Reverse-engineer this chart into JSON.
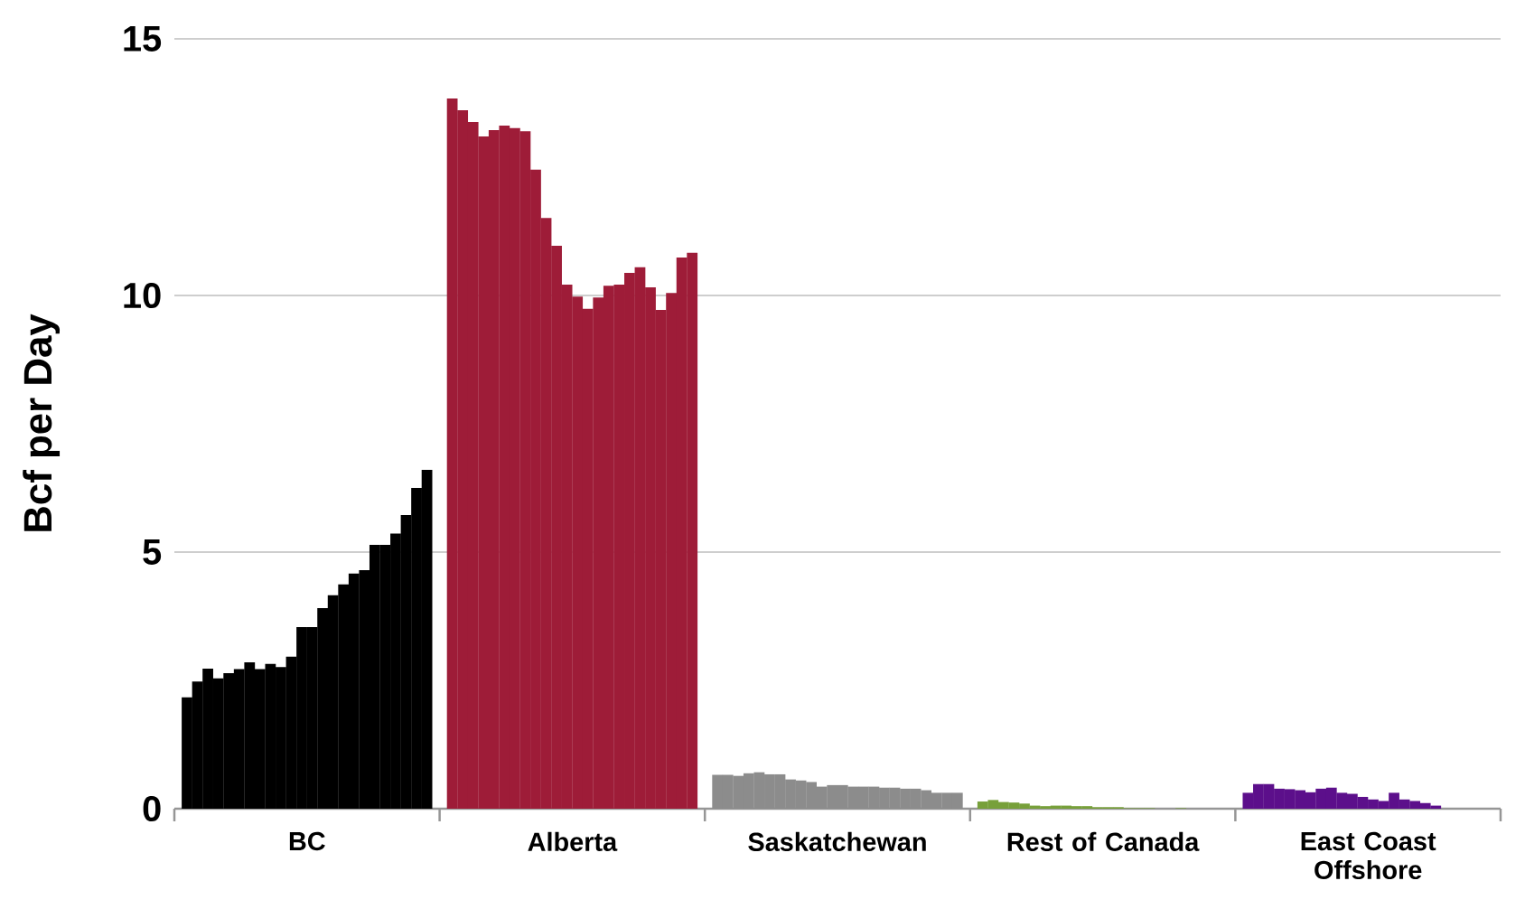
{
  "chart_data": {
    "type": "bar",
    "ylabel": "Bcf per Day",
    "categories": [
      "BC",
      "Alberta",
      "Saskatchewan",
      "Rest of Canada",
      "East Coast Offshore"
    ],
    "ylim": [
      0,
      15
    ],
    "yticks": [
      0,
      5,
      10,
      15
    ],
    "grid": "y",
    "series": [
      {
        "colors": [
          "#000000",
          "#9e1c38",
          "#8c8c8c",
          "#77a03a",
          "#5c0f8b"
        ],
        "values": [
          2.17,
          13.84,
          0.66,
          0.14,
          0.31
        ]
      },
      {
        "colors": [
          "#000000",
          "#9e1c38",
          "#8c8c8c",
          "#77a03a",
          "#5c0f8b"
        ],
        "values": [
          2.48,
          13.61,
          0.66,
          0.17,
          0.48
        ]
      },
      {
        "colors": [
          "#000000",
          "#9e1c38",
          "#8c8c8c",
          "#77a03a",
          "#5c0f8b"
        ],
        "values": [
          2.73,
          13.38,
          0.64,
          0.13,
          0.48
        ]
      },
      {
        "colors": [
          "#000000",
          "#9e1c38",
          "#8c8c8c",
          "#77a03a",
          "#5c0f8b"
        ],
        "values": [
          2.54,
          13.1,
          0.69,
          0.12,
          0.39
        ]
      },
      {
        "colors": [
          "#000000",
          "#9e1c38",
          "#8c8c8c",
          "#77a03a",
          "#5c0f8b"
        ],
        "values": [
          2.64,
          13.22,
          0.71,
          0.1,
          0.38
        ]
      },
      {
        "colors": [
          "#000000",
          "#9e1c38",
          "#8c8c8c",
          "#77a03a",
          "#5c0f8b"
        ],
        "values": [
          2.72,
          13.31,
          0.67,
          0.06,
          0.36
        ]
      },
      {
        "colors": [
          "#000000",
          "#9e1c38",
          "#8c8c8c",
          "#77a03a",
          "#5c0f8b"
        ],
        "values": [
          2.85,
          13.26,
          0.67,
          0.05,
          0.32
        ]
      },
      {
        "colors": [
          "#000000",
          "#9e1c38",
          "#8c8c8c",
          "#77a03a",
          "#5c0f8b"
        ],
        "values": [
          2.72,
          13.2,
          0.57,
          0.06,
          0.39
        ]
      },
      {
        "colors": [
          "#000000",
          "#9e1c38",
          "#8c8c8c",
          "#77a03a",
          "#5c0f8b"
        ],
        "values": [
          2.82,
          12.45,
          0.55,
          0.06,
          0.41
        ]
      },
      {
        "colors": [
          "#000000",
          "#9e1c38",
          "#8c8c8c",
          "#77a03a",
          "#5c0f8b"
        ],
        "values": [
          2.76,
          11.51,
          0.52,
          0.05,
          0.31
        ]
      },
      {
        "colors": [
          "#000000",
          "#9e1c38",
          "#8c8c8c",
          "#77a03a",
          "#5c0f8b"
        ],
        "values": [
          2.96,
          10.97,
          0.43,
          0.05,
          0.29
        ]
      },
      {
        "colors": [
          "#000000",
          "#9e1c38",
          "#8c8c8c",
          "#77a03a",
          "#5c0f8b"
        ],
        "values": [
          3.54,
          10.21,
          0.46,
          0.03,
          0.23
        ]
      },
      {
        "colors": [
          "#000000",
          "#9e1c38",
          "#8c8c8c",
          "#77a03a",
          "#5c0f8b"
        ],
        "values": [
          3.54,
          9.98,
          0.46,
          0.03,
          0.18
        ]
      },
      {
        "colors": [
          "#000000",
          "#9e1c38",
          "#8c8c8c",
          "#77a03a",
          "#5c0f8b"
        ],
        "values": [
          3.91,
          9.74,
          0.43,
          0.03,
          0.15
        ]
      },
      {
        "colors": [
          "#000000",
          "#9e1c38",
          "#8c8c8c",
          "#77a03a",
          "#5c0f8b"
        ],
        "values": [
          4.16,
          9.96,
          0.43,
          0.01,
          0.31
        ]
      },
      {
        "colors": [
          "#000000",
          "#9e1c38",
          "#8c8c8c",
          "#77a03a",
          "#5c0f8b"
        ],
        "values": [
          4.37,
          10.19,
          0.43,
          0.01,
          0.18
        ]
      },
      {
        "colors": [
          "#000000",
          "#9e1c38",
          "#8c8c8c",
          "#77a03a",
          "#5c0f8b"
        ],
        "values": [
          4.58,
          10.21,
          0.41,
          0.01,
          0.15
        ]
      },
      {
        "colors": [
          "#000000",
          "#9e1c38",
          "#8c8c8c",
          "#77a03a",
          "#5c0f8b"
        ],
        "values": [
          4.65,
          10.44,
          0.41,
          0,
          0.11
        ]
      },
      {
        "colors": [
          "#000000",
          "#9e1c38",
          "#8c8c8c",
          "#77a03a",
          "#5c0f8b"
        ],
        "values": [
          5.14,
          10.55,
          0.39,
          0,
          0.06
        ]
      },
      {
        "colors": [
          "#000000",
          "#9e1c38",
          "#8c8c8c",
          "#77a03a",
          "#5c0f8b"
        ],
        "values": [
          5.14,
          10.16,
          0.39,
          0.01,
          0
        ]
      },
      {
        "colors": [
          "#000000",
          "#9e1c38",
          "#8c8c8c",
          "#77a03a",
          "#5c0f8b"
        ],
        "values": [
          5.36,
          9.72,
          0.36,
          0,
          0
        ]
      },
      {
        "colors": [
          "#000000",
          "#9e1c38",
          "#8c8c8c",
          "#77a03a",
          "#5c0f8b"
        ],
        "values": [
          5.72,
          10.05,
          0.31,
          0,
          0
        ]
      },
      {
        "colors": [
          "#000000",
          "#9e1c38",
          "#8c8c8c",
          "#77a03a",
          "#5c0f8b"
        ],
        "values": [
          6.25,
          10.74,
          0.31,
          0,
          0
        ]
      },
      {
        "colors": [
          "#000000",
          "#9e1c38",
          "#8c8c8c",
          "#77a03a",
          "#5c0f8b"
        ],
        "values": [
          6.6,
          10.83,
          0.31,
          0,
          0
        ]
      }
    ]
  }
}
